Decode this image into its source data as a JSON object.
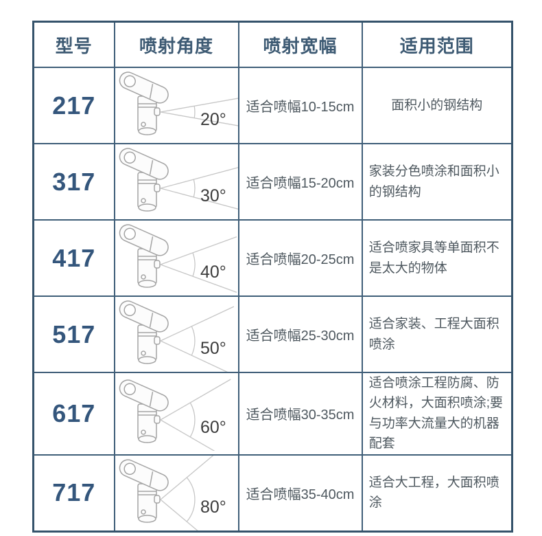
{
  "chart_data": {
    "type": "table",
    "title": "",
    "columns": [
      "型号",
      "喷射角度",
      "喷射宽幅",
      "适用范围"
    ],
    "rows": [
      {
        "model": "217",
        "angle_deg": 20,
        "angle_label": "20°",
        "spray_width": "适合喷幅10-15cm",
        "application": "面积小的钢结构"
      },
      {
        "model": "317",
        "angle_deg": 30,
        "angle_label": "30°",
        "spray_width": "适合喷幅15-20cm",
        "application": "家装分色喷涂和面积小的钢结构"
      },
      {
        "model": "417",
        "angle_deg": 40,
        "angle_label": "40°",
        "spray_width": "适合喷幅20-25cm",
        "application": "适合喷家具等单面积不是太大的物体"
      },
      {
        "model": "517",
        "angle_deg": 50,
        "angle_label": "50°",
        "spray_width": "适合喷幅25-30cm",
        "application": "适合家装、工程大面积喷涂"
      },
      {
        "model": "617",
        "angle_deg": 60,
        "angle_label": "60°",
        "spray_width": "适合喷幅30-35cm",
        "application": "适合喷涂工程防腐、防火材料，大面积喷涂;要与功率大流量大的机器配套"
      },
      {
        "model": "717",
        "angle_deg": 80,
        "angle_label": "80°",
        "spray_width": "适合喷幅35-40cm",
        "application": "适合大工程，大面积喷涂"
      }
    ]
  },
  "colors": {
    "outer_border": "#35536b",
    "inner_border": "#3f5e78",
    "header_text": "#3d5a73",
    "model_text": "#34567c",
    "body_text": "#4e585f",
    "nozzle_line": "#a3a3a3",
    "fan_line": "#c6c6c6",
    "angle_text": "#3c3c3c"
  },
  "icons": {
    "nozzle": "spray-nozzle-icon"
  }
}
